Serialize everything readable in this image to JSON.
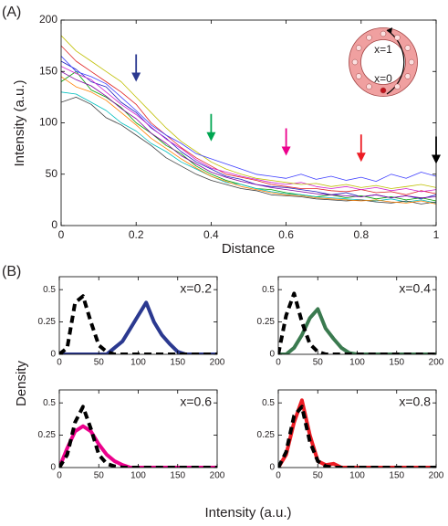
{
  "figure": {
    "panel_labels": [
      "(A)",
      "(B)"
    ],
    "b_ylabel": "Density",
    "b_xlabel": "Intensity (a.u.)"
  },
  "chart_data": [
    {
      "type": "line",
      "xlabel": "Distance",
      "ylabel": "Intensity (a.u.)",
      "xlim": [
        0,
        1
      ],
      "ylim": [
        0,
        200
      ],
      "xticks": [
        0,
        0.2,
        0.4,
        0.6,
        0.8,
        1
      ],
      "yticks": [
        0,
        50,
        100,
        150,
        200
      ],
      "line_width": 0.8,
      "x": [
        0,
        0.04,
        0.08,
        0.12,
        0.16,
        0.2,
        0.24,
        0.28,
        0.32,
        0.36,
        0.4,
        0.44,
        0.48,
        0.52,
        0.56,
        0.6,
        0.64,
        0.68,
        0.72,
        0.76,
        0.8,
        0.84,
        0.88,
        0.92,
        0.96,
        1
      ],
      "series": [
        {
          "color": "#1f1fbf",
          "values": [
            160,
            152,
            140,
            135,
            120,
            110,
            95,
            85,
            72,
            62,
            55,
            48,
            45,
            40,
            38,
            37,
            35,
            33,
            30,
            32,
            28,
            30,
            27,
            29,
            26,
            30
          ]
        },
        {
          "color": "#00a000",
          "values": [
            140,
            150,
            132,
            125,
            115,
            100,
            90,
            78,
            70,
            58,
            50,
            44,
            40,
            36,
            35,
            32,
            30,
            28,
            30,
            27,
            29,
            26,
            28,
            25,
            27,
            24
          ]
        },
        {
          "color": "#e02020",
          "values": [
            175,
            160,
            150,
            140,
            130,
            118,
            100,
            88,
            76,
            66,
            58,
            50,
            47,
            44,
            40,
            38,
            36,
            36,
            34,
            33,
            35,
            32,
            33,
            30,
            34,
            31
          ]
        },
        {
          "color": "#00bfbf",
          "values": [
            130,
            128,
            120,
            112,
            100,
            92,
            80,
            72,
            62,
            55,
            48,
            42,
            40,
            36,
            33,
            31,
            30,
            28,
            27,
            26,
            25,
            24,
            26,
            23,
            25,
            22
          ]
        },
        {
          "color": "#d020d0",
          "values": [
            155,
            148,
            142,
            130,
            118,
            108,
            96,
            84,
            75,
            64,
            56,
            52,
            48,
            45,
            42,
            40,
            42,
            38,
            36,
            38,
            35,
            37,
            34,
            36,
            33,
            35
          ]
        },
        {
          "color": "#bfbf00",
          "values": [
            185,
            170,
            160,
            150,
            140,
            125,
            110,
            95,
            82,
            72,
            62,
            55,
            50,
            46,
            44,
            42,
            40,
            41,
            38,
            40,
            37,
            39,
            36,
            38,
            40,
            37
          ]
        },
        {
          "color": "#404040",
          "values": [
            120,
            125,
            118,
            105,
            98,
            88,
            78,
            66,
            58,
            50,
            44,
            40,
            36,
            34,
            30,
            29,
            28,
            26,
            25,
            24,
            25,
            23,
            22,
            24,
            21,
            23
          ]
        },
        {
          "color": "#4040ff",
          "values": [
            165,
            150,
            145,
            138,
            125,
            112,
            98,
            88,
            80,
            70,
            65,
            60,
            55,
            50,
            48,
            46,
            50,
            45,
            48,
            44,
            47,
            43,
            50,
            46,
            52,
            48
          ]
        },
        {
          "color": "#ff8000",
          "values": [
            145,
            135,
            130,
            122,
            110,
            98,
            85,
            75,
            65,
            56,
            48,
            43,
            38,
            35,
            32,
            30,
            29,
            27,
            26,
            25,
            24,
            25,
            23,
            22,
            24,
            21
          ]
        },
        {
          "color": "#8000a0",
          "values": [
            150,
            142,
            136,
            126,
            114,
            104,
            90,
            80,
            68,
            60,
            52,
            47,
            43,
            40,
            37,
            35,
            33,
            31,
            30,
            29,
            28,
            30,
            27,
            29,
            27,
            28
          ]
        }
      ],
      "arrows": [
        {
          "x": 0.2,
          "y": 140,
          "color": "#2b3990"
        },
        {
          "x": 0.4,
          "y": 82,
          "color": "#00a651"
        },
        {
          "x": 0.6,
          "y": 68,
          "color": "#ec008c"
        },
        {
          "x": 0.8,
          "y": 62,
          "color": "#ed1c24"
        },
        {
          "x": 1,
          "y": 60,
          "color": "#000000"
        }
      ],
      "inset_labels": [
        "x=1",
        "x=0"
      ]
    },
    {
      "type": "line",
      "annotation": "x=0.2",
      "xlim": [
        0,
        200
      ],
      "ylim": [
        0,
        0.6
      ],
      "xticks": [
        0,
        50,
        100,
        150,
        200
      ],
      "yticks": [
        0,
        0.25,
        0.5
      ],
      "line_width": 4,
      "x": [
        0,
        10,
        20,
        30,
        40,
        50,
        60,
        70,
        80,
        90,
        100,
        110,
        120,
        130,
        140,
        150,
        160,
        170,
        180,
        190,
        200
      ],
      "series": [
        {
          "color": "#2b3990",
          "values": [
            0,
            0,
            0,
            0,
            0,
            0,
            0,
            0.05,
            0.1,
            0.2,
            0.3,
            0.4,
            0.25,
            0.15,
            0.08,
            0.02,
            0,
            0,
            0,
            0,
            0
          ]
        },
        {
          "color": "#000000",
          "dash": true,
          "values": [
            0,
            0.05,
            0.4,
            0.45,
            0.25,
            0.07,
            0.02,
            0,
            0,
            0,
            0,
            0,
            0,
            0,
            0,
            0,
            0,
            0,
            0,
            0,
            0
          ]
        }
      ]
    },
    {
      "type": "line",
      "annotation": "x=0.4",
      "xlim": [
        0,
        200
      ],
      "ylim": [
        0,
        0.6
      ],
      "xticks": [
        0,
        50,
        100,
        150,
        200
      ],
      "yticks": [
        0,
        0.25,
        0.5
      ],
      "line_width": 4,
      "x": [
        0,
        10,
        20,
        30,
        40,
        50,
        60,
        70,
        80,
        90,
        100,
        110,
        120,
        130,
        140,
        150,
        160,
        170,
        180,
        190,
        200
      ],
      "series": [
        {
          "color": "#3a7a4f",
          "values": [
            0,
            0,
            0.05,
            0.15,
            0.28,
            0.35,
            0.2,
            0.12,
            0.05,
            0.01,
            0,
            0,
            0,
            0,
            0,
            0,
            0,
            0,
            0,
            0,
            0
          ]
        },
        {
          "color": "#000000",
          "dash": true,
          "values": [
            0,
            0.3,
            0.47,
            0.25,
            0.08,
            0.02,
            0,
            0,
            0,
            0,
            0,
            0,
            0,
            0,
            0,
            0,
            0,
            0,
            0,
            0,
            0
          ]
        }
      ]
    },
    {
      "type": "line",
      "annotation": "x=0.6",
      "xlim": [
        0,
        200
      ],
      "ylim": [
        0,
        0.6
      ],
      "xticks": [
        0,
        50,
        100,
        150,
        200
      ],
      "yticks": [
        0,
        0.25,
        0.5
      ],
      "line_width": 4,
      "x": [
        0,
        10,
        20,
        30,
        40,
        50,
        60,
        70,
        80,
        90,
        100,
        110,
        120,
        130,
        140,
        150,
        160,
        170,
        180,
        190,
        200
      ],
      "series": [
        {
          "color": "#ec008c",
          "values": [
            0,
            0.15,
            0.28,
            0.32,
            0.28,
            0.18,
            0.1,
            0.05,
            0.02,
            0,
            0,
            0,
            0,
            0,
            0,
            0,
            0,
            0,
            0,
            0,
            0
          ]
        },
        {
          "color": "#000000",
          "dash": true,
          "values": [
            0,
            0.1,
            0.35,
            0.47,
            0.3,
            0.1,
            0.03,
            0.01,
            0,
            0,
            0,
            0,
            0,
            0,
            0,
            0,
            0,
            0,
            0,
            0,
            0
          ]
        }
      ]
    },
    {
      "type": "line",
      "annotation": "x=0.8",
      "xlim": [
        0,
        200
      ],
      "ylim": [
        0,
        0.6
      ],
      "xticks": [
        0,
        50,
        100,
        150,
        200
      ],
      "yticks": [
        0,
        0.25,
        0.5
      ],
      "line_width": 4,
      "x": [
        0,
        10,
        20,
        30,
        40,
        50,
        60,
        70,
        80,
        90,
        100,
        110,
        120,
        130,
        140,
        150,
        160,
        170,
        180,
        190,
        200
      ],
      "series": [
        {
          "color": "#ed1c24",
          "values": [
            0,
            0.1,
            0.35,
            0.52,
            0.25,
            0.05,
            0.02,
            0.03,
            0,
            0,
            0,
            0,
            0,
            0,
            0,
            0,
            0,
            0,
            0,
            0,
            0
          ]
        },
        {
          "color": "#000000",
          "dash": true,
          "values": [
            0,
            0.12,
            0.4,
            0.47,
            0.2,
            0.05,
            0.01,
            0,
            0,
            0,
            0,
            0,
            0,
            0,
            0,
            0,
            0,
            0,
            0,
            0,
            0
          ]
        }
      ]
    }
  ]
}
